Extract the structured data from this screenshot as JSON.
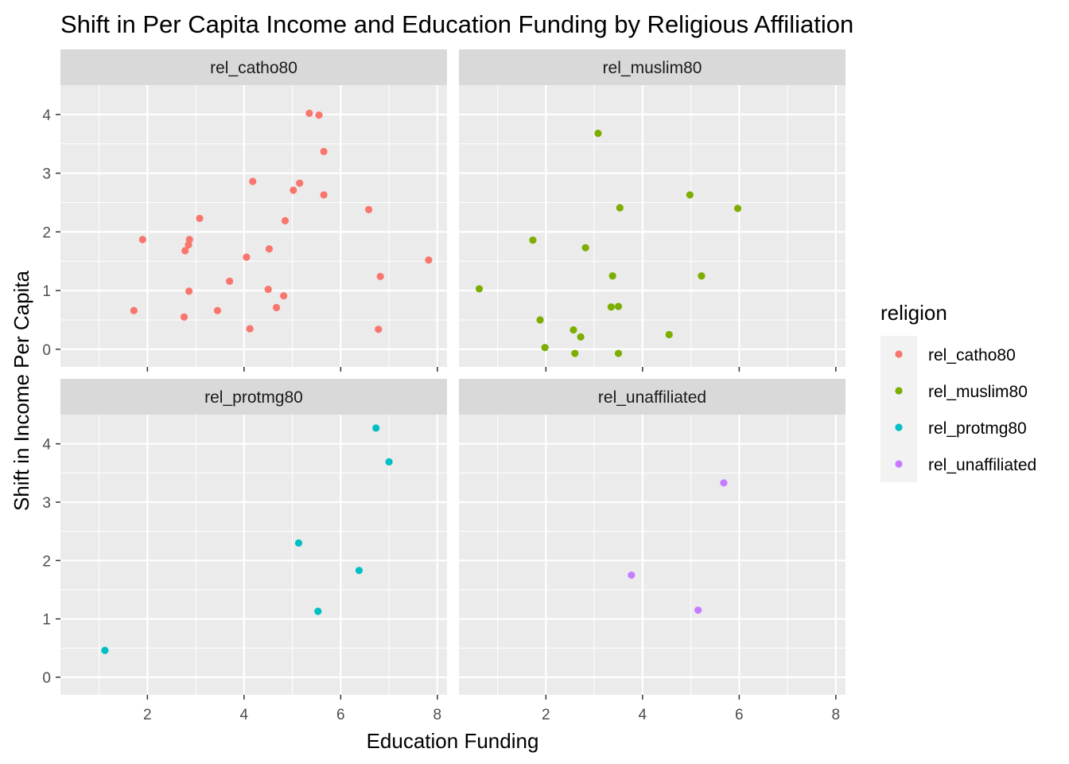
{
  "chart_data": {
    "type": "scatter",
    "title": "Shift in Per Capita Income and Education Funding by Religious Affiliation",
    "xlabel": "Education Funding",
    "ylabel": "Shift in Income Per Capita",
    "xlim": [
      0.2,
      8.2
    ],
    "ylim": [
      -0.3,
      4.5
    ],
    "x_ticks": [
      2,
      4,
      6,
      8
    ],
    "y_ticks": [
      0,
      1,
      2,
      3,
      4
    ],
    "grid": true,
    "legend": {
      "title": "religion",
      "position": "right"
    },
    "panels": [
      {
        "label": "rel_catho80",
        "color": "#F8766D",
        "points": [
          [
            5.35,
            4.02
          ],
          [
            5.55,
            3.99
          ],
          [
            5.65,
            3.37
          ],
          [
            4.18,
            2.86
          ],
          [
            5.15,
            2.83
          ],
          [
            5.02,
            2.71
          ],
          [
            5.65,
            2.63
          ],
          [
            6.58,
            2.38
          ],
          [
            3.08,
            2.23
          ],
          [
            4.85,
            2.19
          ],
          [
            1.9,
            1.87
          ],
          [
            2.87,
            1.87
          ],
          [
            2.85,
            1.78
          ],
          [
            2.78,
            1.68
          ],
          [
            4.52,
            1.71
          ],
          [
            4.05,
            1.57
          ],
          [
            7.82,
            1.52
          ],
          [
            3.7,
            1.16
          ],
          [
            6.82,
            1.24
          ],
          [
            2.86,
            0.99
          ],
          [
            4.5,
            1.02
          ],
          [
            4.82,
            0.91
          ],
          [
            4.67,
            0.71
          ],
          [
            1.72,
            0.66
          ],
          [
            3.45,
            0.66
          ],
          [
            2.76,
            0.55
          ],
          [
            4.12,
            0.35
          ],
          [
            6.78,
            0.34
          ]
        ]
      },
      {
        "label": "rel_muslim80",
        "color": "#7CAE00",
        "points": [
          [
            3.08,
            3.68
          ],
          [
            4.98,
            2.63
          ],
          [
            3.53,
            2.41
          ],
          [
            5.97,
            2.4
          ],
          [
            1.73,
            1.86
          ],
          [
            2.82,
            1.73
          ],
          [
            3.38,
            1.25
          ],
          [
            5.22,
            1.25
          ],
          [
            0.62,
            1.03
          ],
          [
            3.35,
            0.72
          ],
          [
            3.5,
            0.73
          ],
          [
            1.88,
            0.5
          ],
          [
            2.57,
            0.33
          ],
          [
            2.72,
            0.21
          ],
          [
            4.55,
            0.25
          ],
          [
            1.98,
            0.03
          ],
          [
            2.6,
            -0.07
          ],
          [
            3.5,
            -0.07
          ]
        ]
      },
      {
        "label": "rel_protmg80",
        "color": "#00BFC4",
        "points": [
          [
            6.73,
            4.27
          ],
          [
            7.0,
            3.69
          ],
          [
            5.13,
            2.3
          ],
          [
            6.38,
            1.83
          ],
          [
            5.53,
            1.13
          ],
          [
            1.12,
            0.46
          ]
        ]
      },
      {
        "label": "rel_unaffiliated",
        "color": "#C77CFF",
        "points": [
          [
            5.68,
            3.33
          ],
          [
            3.77,
            1.75
          ],
          [
            5.15,
            1.15
          ]
        ]
      }
    ]
  },
  "colors": {
    "panel_background": "#EBEBEB",
    "strip_background": "#D9D9D9",
    "grid_major": "#FFFFFF",
    "legend_key_background": "#F2F2F2"
  }
}
